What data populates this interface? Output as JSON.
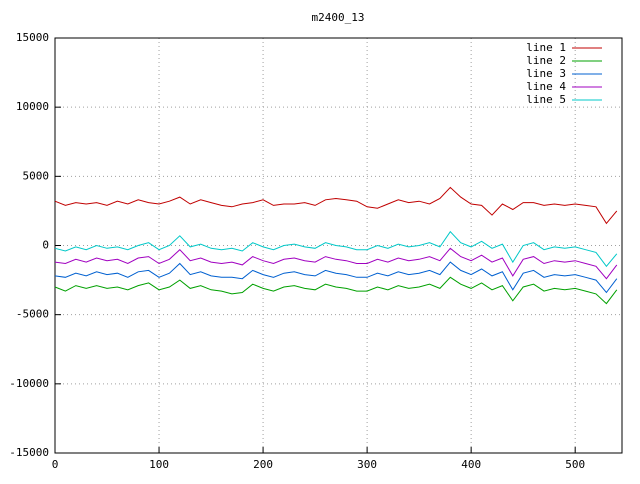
{
  "chart_data": {
    "type": "line",
    "title": "m2400_13",
    "x": [
      0,
      10,
      20,
      30,
      40,
      50,
      60,
      70,
      80,
      90,
      100,
      110,
      120,
      130,
      140,
      150,
      160,
      170,
      180,
      190,
      200,
      210,
      220,
      230,
      240,
      250,
      260,
      270,
      280,
      290,
      300,
      310,
      320,
      330,
      340,
      350,
      360,
      370,
      380,
      390,
      400,
      410,
      420,
      430,
      440,
      450,
      460,
      470,
      480,
      490,
      500,
      510,
      520,
      530,
      540
    ],
    "series": [
      {
        "name": "line 1",
        "color": "#c00000",
        "values": [
          3200,
          2900,
          3100,
          3000,
          3100,
          2900,
          3200,
          3000,
          3300,
          3100,
          3000,
          3200,
          3500,
          3000,
          3300,
          3100,
          2900,
          2800,
          3000,
          3100,
          3300,
          2900,
          3000,
          3000,
          3100,
          2900,
          3300,
          3400,
          3300,
          3200,
          2800,
          2700,
          3000,
          3300,
          3100,
          3200,
          3000,
          3400,
          4200,
          3500,
          3000,
          2900,
          2200,
          3000,
          2600,
          3100,
          3100,
          2900,
          3000,
          2900,
          3000,
          2900,
          2800,
          1600,
          2500
        ]
      },
      {
        "name": "line 2",
        "color": "#00a000",
        "values": [
          -3000,
          -3300,
          -2900,
          -3100,
          -2900,
          -3100,
          -3000,
          -3200,
          -2900,
          -2700,
          -3200,
          -3000,
          -2500,
          -3100,
          -2900,
          -3200,
          -3300,
          -3500,
          -3400,
          -2800,
          -3100,
          -3300,
          -3000,
          -2900,
          -3100,
          -3200,
          -2800,
          -3000,
          -3100,
          -3300,
          -3300,
          -3000,
          -3200,
          -2900,
          -3100,
          -3000,
          -2800,
          -3100,
          -2300,
          -2800,
          -3100,
          -2700,
          -3200,
          -2900,
          -4000,
          -3000,
          -2800,
          -3300,
          -3100,
          -3200,
          -3100,
          -3300,
          -3500,
          -4200,
          -3200
        ]
      },
      {
        "name": "line 3",
        "color": "#0060d0",
        "values": [
          -2200,
          -2300,
          -2000,
          -2200,
          -1900,
          -2100,
          -2000,
          -2300,
          -1900,
          -1800,
          -2300,
          -2000,
          -1300,
          -2100,
          -1900,
          -2200,
          -2300,
          -2300,
          -2400,
          -1800,
          -2100,
          -2300,
          -2000,
          -1900,
          -2100,
          -2200,
          -1800,
          -2000,
          -2100,
          -2300,
          -2300,
          -2000,
          -2200,
          -1900,
          -2100,
          -2000,
          -1800,
          -2100,
          -1200,
          -1800,
          -2100,
          -1700,
          -2200,
          -1900,
          -3200,
          -2000,
          -1800,
          -2300,
          -2100,
          -2200,
          -2100,
          -2300,
          -2500,
          -3400,
          -2400
        ]
      },
      {
        "name": "line 4",
        "color": "#a000c0",
        "values": [
          -1200,
          -1300,
          -1000,
          -1200,
          -900,
          -1100,
          -1000,
          -1300,
          -900,
          -800,
          -1300,
          -1000,
          -300,
          -1100,
          -900,
          -1200,
          -1300,
          -1200,
          -1400,
          -800,
          -1100,
          -1300,
          -1000,
          -900,
          -1100,
          -1200,
          -800,
          -1000,
          -1100,
          -1300,
          -1300,
          -1000,
          -1200,
          -900,
          -1100,
          -1000,
          -800,
          -1100,
          -200,
          -800,
          -1100,
          -700,
          -1200,
          -900,
          -2200,
          -1000,
          -800,
          -1300,
          -1100,
          -1200,
          -1100,
          -1300,
          -1500,
          -2400,
          -1400
        ]
      },
      {
        "name": "line 5",
        "color": "#00c8c8",
        "values": [
          -200,
          -400,
          -100,
          -300,
          0,
          -200,
          -100,
          -300,
          0,
          200,
          -300,
          0,
          700,
          -100,
          100,
          -200,
          -300,
          -200,
          -400,
          200,
          -100,
          -300,
          0,
          100,
          -100,
          -200,
          200,
          0,
          -100,
          -300,
          -300,
          0,
          -200,
          100,
          -100,
          0,
          200,
          -100,
          1000,
          200,
          -100,
          300,
          -200,
          100,
          -1200,
          0,
          200,
          -300,
          -100,
          -200,
          -100,
          -300,
          -500,
          -1500,
          -600
        ]
      }
    ],
    "xlim": [
      0,
      545
    ],
    "xticks": [
      0,
      100,
      200,
      300,
      400,
      500
    ],
    "ylim": [
      -15000,
      15000
    ],
    "yticks": [
      -15000,
      -10000,
      -5000,
      0,
      5000,
      10000,
      15000
    ],
    "grid": true,
    "legend": "top-right"
  }
}
